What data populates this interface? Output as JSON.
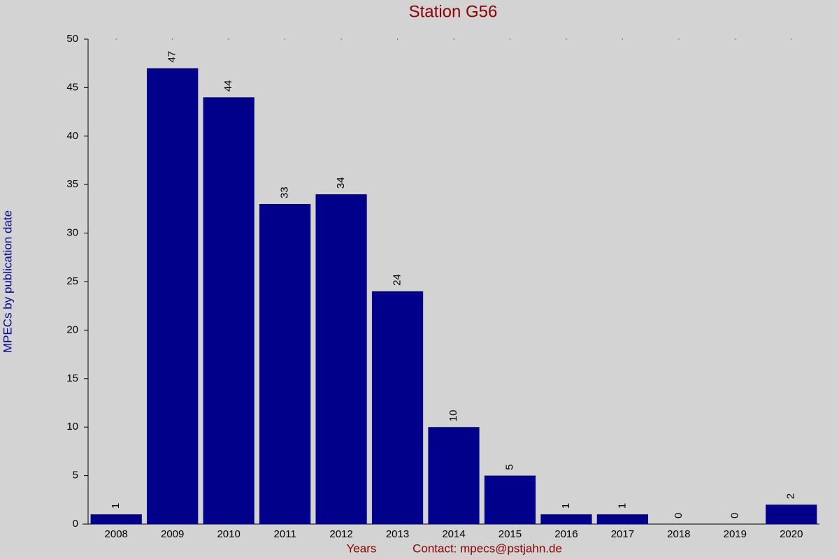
{
  "chart_data": {
    "type": "bar",
    "title": "Station G56",
    "x_label": "Years",
    "y_label": "MPECs by publication date",
    "footer": "Contact: mpecs@pstjahn.de",
    "categories": [
      "2008",
      "2009",
      "2010",
      "2011",
      "2012",
      "2013",
      "2014",
      "2015",
      "2016",
      "2017",
      "2018",
      "2019",
      "2020"
    ],
    "values": [
      1,
      47,
      44,
      33,
      34,
      24,
      10,
      5,
      1,
      1,
      0,
      0,
      2
    ],
    "color": "#00008b",
    "ylim": [
      0,
      50
    ],
    "yticks": [
      0,
      5,
      10,
      15,
      20,
      25,
      30,
      35,
      40,
      45,
      50
    ]
  }
}
